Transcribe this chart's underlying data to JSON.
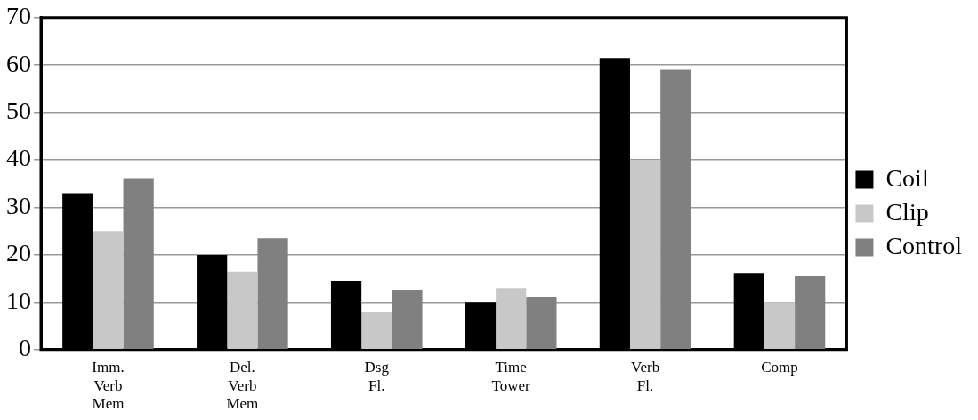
{
  "chart_data": {
    "type": "bar",
    "categories": [
      "Imm. Verb Mem",
      "Del. Verb Mem",
      "Dsg Fl.",
      "Time Tower",
      "Verb Fl.",
      "Comp"
    ],
    "series": [
      {
        "name": "Coil",
        "color": "#000000",
        "values": [
          33,
          20,
          14.5,
          10,
          61.5,
          16
        ]
      },
      {
        "name": "Clip",
        "color": "#c8c8c8",
        "values": [
          25,
          16.5,
          8,
          13,
          40,
          10
        ]
      },
      {
        "name": "Control",
        "color": "#808080",
        "values": [
          36,
          23.5,
          12.5,
          11,
          59,
          15.5
        ]
      }
    ],
    "ylim": [
      0,
      70
    ],
    "yticks": [
      0,
      10,
      20,
      30,
      40,
      50,
      60,
      70
    ],
    "grid": "y",
    "legend": "right"
  }
}
